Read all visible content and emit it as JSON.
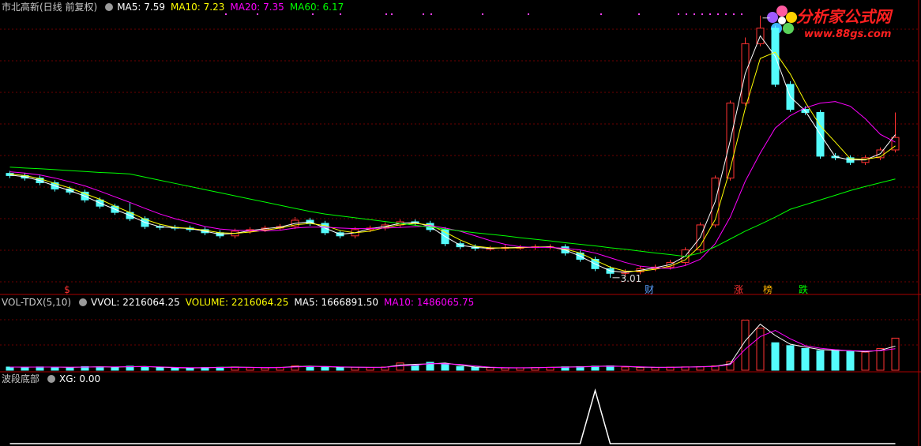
{
  "chart_data": [
    {
      "type": "candlestick",
      "title": "市北高新(日线 前复权)",
      "up_color": "#ff3232",
      "down_color": "#54fcfc",
      "open": [
        6.35,
        6.28,
        6.2,
        6.05,
        5.85,
        5.75,
        5.5,
        5.3,
        5.1,
        4.9,
        4.65,
        4.62,
        4.6,
        4.55,
        4.45,
        4.35,
        4.5,
        4.55,
        4.6,
        4.65,
        4.85,
        4.75,
        4.45,
        4.35,
        4.55,
        4.6,
        4.7,
        4.8,
        4.75,
        4.55,
        4.1,
        4.0,
        3.95,
        3.95,
        3.98,
        3.98,
        4.0,
        4.0,
        3.8,
        3.6,
        3.3,
        3.15,
        3.2,
        3.3,
        3.35,
        3.5,
        3.9,
        4.7,
        6.2,
        8.6,
        10.5,
        11.0,
        9.2,
        8.4,
        8.3,
        6.9,
        6.85,
        6.7,
        6.85,
        7.1
      ],
      "high": [
        6.43,
        6.36,
        6.28,
        6.13,
        5.93,
        5.83,
        5.58,
        5.38,
        5.4,
        4.98,
        4.73,
        4.7,
        4.68,
        4.63,
        4.53,
        4.58,
        4.63,
        4.68,
        4.73,
        4.95,
        4.93,
        4.83,
        4.53,
        4.63,
        4.68,
        4.78,
        4.88,
        4.88,
        4.83,
        4.63,
        4.18,
        4.08,
        4.03,
        4.06,
        4.06,
        4.08,
        4.08,
        4.08,
        3.88,
        3.68,
        3.38,
        3.28,
        3.38,
        3.43,
        3.58,
        3.98,
        4.78,
        6.28,
        8.68,
        10.7,
        11.4,
        11.08,
        9.3,
        8.5,
        8.38,
        7.0,
        6.93,
        6.93,
        7.18,
        8.3
      ],
      "low": [
        6.2,
        6.12,
        5.97,
        5.77,
        5.67,
        5.42,
        5.22,
        5.02,
        4.82,
        4.57,
        4.54,
        4.52,
        4.47,
        4.37,
        4.27,
        4.27,
        4.42,
        4.47,
        4.52,
        4.57,
        4.67,
        4.37,
        4.27,
        4.27,
        4.47,
        4.52,
        4.62,
        4.67,
        4.47,
        4.02,
        3.92,
        3.87,
        3.87,
        3.87,
        3.9,
        3.9,
        3.92,
        3.72,
        3.52,
        3.22,
        3.01,
        3.07,
        3.12,
        3.22,
        3.27,
        3.42,
        3.82,
        4.62,
        6.12,
        8.52,
        10.42,
        9.12,
        8.32,
        8.22,
        6.82,
        6.77,
        6.62,
        6.62,
        6.77,
        7.02
      ],
      "close": [
        6.28,
        6.2,
        6.05,
        5.85,
        5.75,
        5.5,
        5.3,
        5.1,
        4.9,
        4.65,
        4.62,
        4.6,
        4.55,
        4.45,
        4.35,
        4.5,
        4.55,
        4.6,
        4.65,
        4.85,
        4.75,
        4.45,
        4.35,
        4.55,
        4.6,
        4.7,
        4.8,
        4.75,
        4.55,
        4.1,
        4.0,
        3.95,
        3.95,
        3.98,
        3.98,
        4.0,
        4.0,
        3.8,
        3.6,
        3.3,
        3.15,
        3.2,
        3.3,
        3.35,
        3.5,
        3.9,
        4.7,
        6.2,
        8.6,
        10.5,
        11.0,
        9.2,
        8.4,
        8.3,
        6.9,
        6.85,
        6.7,
        6.85,
        7.1,
        7.5
      ],
      "series": [
        {
          "name": "MA5: 7.59",
          "color": "#ffffff",
          "values": [
            6.3,
            6.24,
            6.12,
            5.95,
            5.8,
            5.62,
            5.4,
            5.2,
            5.0,
            4.78,
            4.64,
            4.61,
            4.58,
            4.5,
            4.4,
            4.43,
            4.52,
            4.58,
            4.63,
            4.75,
            4.8,
            4.6,
            4.4,
            4.45,
            4.58,
            4.65,
            4.75,
            4.78,
            4.65,
            4.33,
            4.05,
            3.98,
            3.95,
            3.97,
            3.98,
            3.99,
            4.0,
            3.9,
            3.7,
            3.45,
            3.23,
            3.18,
            3.25,
            3.33,
            3.43,
            3.7,
            4.3,
            5.45,
            7.4,
            9.55,
            10.75,
            10.1,
            8.8,
            8.35,
            7.6,
            6.88,
            6.78,
            6.78,
            6.98,
            7.59
          ]
        },
        {
          "name": "MA10: 7.23",
          "color": "#ffff00",
          "values": [
            6.33,
            6.28,
            6.18,
            6.03,
            5.88,
            5.7,
            5.52,
            5.3,
            5.1,
            4.88,
            4.72,
            4.62,
            4.59,
            4.53,
            4.45,
            4.43,
            4.47,
            4.53,
            4.6,
            4.7,
            4.75,
            4.68,
            4.52,
            4.45,
            4.5,
            4.62,
            4.7,
            4.75,
            4.7,
            4.47,
            4.22,
            4.02,
            3.97,
            3.96,
            3.97,
            3.99,
            3.99,
            3.93,
            3.8,
            3.57,
            3.35,
            3.22,
            3.22,
            3.28,
            3.38,
            3.58,
            4.03,
            4.87,
            6.5,
            8.43,
            10.03,
            10.23,
            9.53,
            8.63,
            7.87,
            7.35,
            6.82,
            6.8,
            6.88,
            7.23
          ]
        },
        {
          "name": "MA20: 7.35",
          "color": "#ff00ff",
          "values": [
            6.4,
            6.36,
            6.3,
            6.2,
            6.08,
            5.95,
            5.78,
            5.6,
            5.42,
            5.23,
            5.05,
            4.9,
            4.78,
            4.65,
            4.57,
            4.53,
            4.52,
            4.51,
            4.53,
            4.6,
            4.63,
            4.63,
            4.6,
            4.58,
            4.58,
            4.6,
            4.62,
            4.64,
            4.68,
            4.6,
            4.5,
            4.35,
            4.2,
            4.08,
            4.0,
            3.98,
            3.98,
            3.95,
            3.9,
            3.8,
            3.65,
            3.5,
            3.38,
            3.33,
            3.3,
            3.4,
            3.6,
            4.1,
            4.95,
            6.1,
            7.0,
            7.8,
            8.2,
            8.45,
            8.6,
            8.65,
            8.5,
            8.1,
            7.6,
            7.35
          ]
        },
        {
          "name": "MA60: 6.17",
          "color": "#00ff00",
          "values": [
            6.55,
            6.52,
            6.5,
            6.47,
            6.44,
            6.41,
            6.38,
            6.36,
            6.33,
            6.23,
            6.13,
            6.03,
            5.93,
            5.83,
            5.73,
            5.63,
            5.53,
            5.43,
            5.33,
            5.23,
            5.13,
            5.05,
            4.99,
            4.93,
            4.87,
            4.81,
            4.75,
            4.69,
            4.63,
            4.57,
            4.51,
            4.45,
            4.4,
            4.35,
            4.29,
            4.24,
            4.19,
            4.13,
            4.08,
            4.03,
            3.97,
            3.92,
            3.86,
            3.8,
            3.75,
            3.69,
            3.8,
            4.0,
            4.25,
            4.5,
            4.72,
            4.95,
            5.2,
            5.35,
            5.5,
            5.65,
            5.8,
            5.93,
            6.05,
            6.17
          ]
        }
      ],
      "low_label": "3.01",
      "markers": [
        {
          "label": "$",
          "color": "#ff3232"
        },
        {
          "label": "财",
          "color": "#5aa0ff"
        },
        {
          "label": "涨",
          "color": "#ff3232"
        },
        {
          "label": "榜",
          "color": "#ffb400"
        },
        {
          "label": "跌",
          "color": "#00ff00"
        }
      ],
      "ylim": [
        2.5,
        11.9
      ]
    },
    {
      "type": "volume",
      "title": "VOL-TDX(5,10)",
      "legend": [
        {
          "text": "VVOL: 2216064.25",
          "color": "#ffffff"
        },
        {
          "text": "VOLUME: 2216064.25",
          "color": "#ffff00"
        }
      ],
      "values": [
        220000,
        200000,
        230000,
        210000,
        190000,
        250000,
        230000,
        210000,
        280000,
        240000,
        180000,
        170000,
        160000,
        190000,
        200000,
        220000,
        180000,
        170000,
        200000,
        300000,
        260000,
        230000,
        200000,
        210000,
        190000,
        220000,
        500000,
        320000,
        550000,
        450000,
        250000,
        200000,
        180000,
        160000,
        170000,
        190000,
        200000,
        230000,
        250000,
        280000,
        300000,
        220000,
        200000,
        190000,
        210000,
        230000,
        250000,
        300000,
        600000,
        3460000,
        2900000,
        1900000,
        1700000,
        1500000,
        1350000,
        1400000,
        1300000,
        1250000,
        1500000,
        2216064.25
      ],
      "series": [
        {
          "name": "MA5: 1666891.50",
          "color": "#ffffff",
          "values": [
            220000,
            210000,
            215000,
            220000,
            200000,
            220000,
            240000,
            220000,
            245000,
            260000,
            210000,
            175000,
            165000,
            175000,
            195000,
            210000,
            200000,
            175000,
            185000,
            250000,
            280000,
            245000,
            215000,
            205000,
            200000,
            205000,
            360000,
            410000,
            435000,
            500000,
            350000,
            225000,
            190000,
            170000,
            165000,
            180000,
            195000,
            215000,
            240000,
            265000,
            290000,
            260000,
            210000,
            195000,
            200000,
            220000,
            240000,
            275000,
            450000,
            2030000,
            3180000,
            2400000,
            1800000,
            1600000,
            1425000,
            1375000,
            1350000,
            1275000,
            1375000,
            1666891.5
          ]
        },
        {
          "name": "MA10: 1486065.75",
          "color": "#ff00ff",
          "values": [
            220000,
            215000,
            217000,
            215000,
            210000,
            215000,
            225000,
            230000,
            240000,
            245000,
            235000,
            200000,
            175000,
            175000,
            185000,
            200000,
            200000,
            190000,
            185000,
            225000,
            255000,
            265000,
            230000,
            215000,
            200000,
            205000,
            300000,
            345000,
            455000,
            440000,
            400000,
            300000,
            210000,
            180000,
            170000,
            175000,
            190000,
            205000,
            225000,
            255000,
            275000,
            265000,
            240000,
            205000,
            200000,
            210000,
            230000,
            260000,
            385000,
            1450000,
            2320000,
            2750000,
            2170000,
            1700000,
            1520000,
            1420000,
            1350000,
            1320000,
            1350000,
            1486065.75
          ]
        }
      ],
      "ylim": [
        0,
        4200000
      ]
    },
    {
      "type": "line",
      "title": "波段底部",
      "series": [
        {
          "name": "XG: 0.00",
          "color": "#ffffff",
          "values": [
            0,
            0,
            0,
            0,
            0,
            0,
            0,
            0,
            0,
            0,
            0,
            0,
            0,
            0,
            0,
            0,
            0,
            0,
            0,
            0,
            0,
            0,
            0,
            0,
            0,
            0,
            0,
            0,
            0,
            0,
            0,
            0,
            0,
            0,
            0,
            0,
            0,
            0,
            0,
            1,
            0,
            0,
            0,
            0,
            0,
            0,
            0,
            0,
            0,
            0,
            0,
            0,
            0,
            0,
            0,
            0,
            0,
            0,
            0,
            0
          ]
        }
      ],
      "ylim": [
        0,
        1.1
      ]
    }
  ],
  "logo": {
    "title": "分析家公式网",
    "url": "www.88gs.com"
  }
}
